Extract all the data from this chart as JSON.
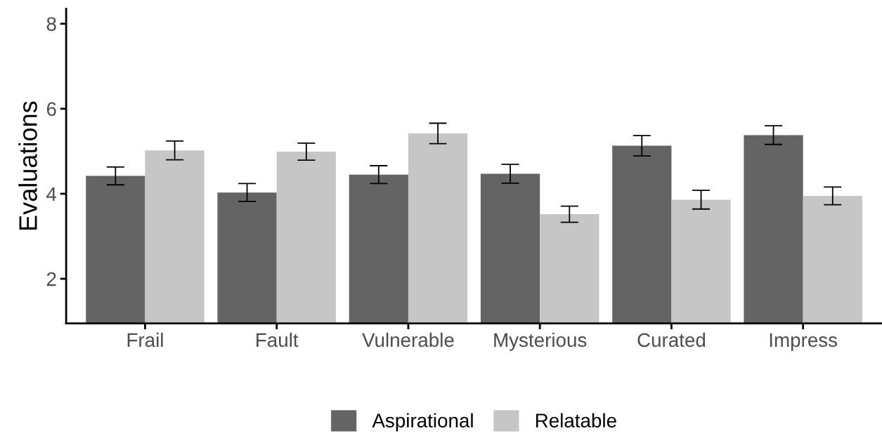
{
  "chart_data": {
    "type": "bar",
    "ylabel": "Evaluations",
    "categories": [
      "Frail",
      "Fault",
      "Vulnerable",
      "Mysterious",
      "Curated",
      "Impress"
    ],
    "series": [
      {
        "name": "Aspirational",
        "color": "#646464",
        "values": [
          4.42,
          4.03,
          4.45,
          4.47,
          5.13,
          5.38
        ],
        "errors": [
          0.21,
          0.21,
          0.21,
          0.22,
          0.24,
          0.22
        ]
      },
      {
        "name": "Relatable",
        "color": "#c6c6c6",
        "values": [
          5.02,
          4.99,
          5.42,
          3.52,
          3.86,
          3.95
        ],
        "errors": [
          0.22,
          0.2,
          0.24,
          0.19,
          0.22,
          0.21
        ]
      }
    ],
    "ylim": [
      0.95,
      8.35
    ],
    "yticks": [
      2,
      4,
      6,
      8
    ],
    "grid": false,
    "legend": "bottom"
  }
}
